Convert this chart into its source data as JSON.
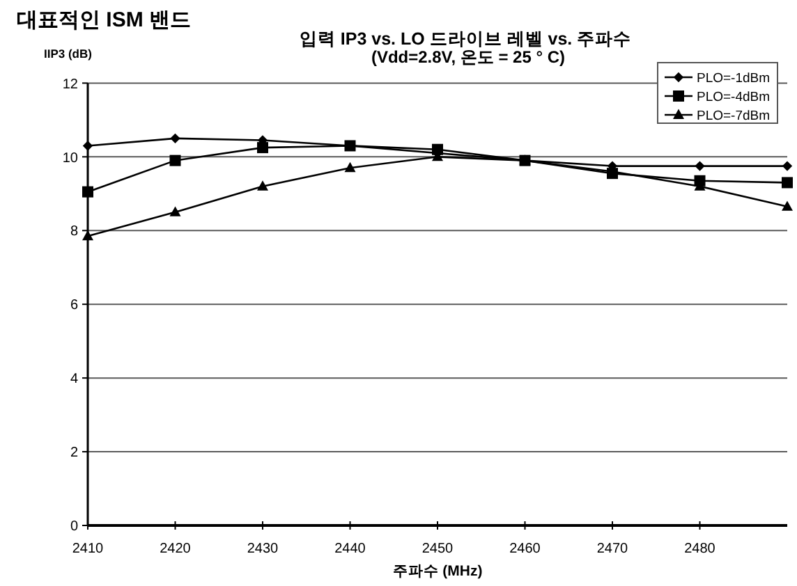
{
  "chart_data": {
    "type": "line",
    "title": "입력 IP3 vs. LO 드라이브 레벨 vs. 주파수",
    "subtitle": "(Vdd=2.8V, 온도 = 25 ° C)",
    "xlabel": "주파수 (MHz)",
    "ylabel": "IIP3 (dB)",
    "annotations": [
      "대표적인 ISM 밴드"
    ],
    "x": [
      2410,
      2420,
      2430,
      2440,
      2450,
      2460,
      2470,
      2480,
      2490
    ],
    "series": [
      {
        "name": "PLO=-1dBm",
        "color": "#000000",
        "marker": "diamond",
        "values": [
          10.3,
          10.5,
          10.45,
          10.3,
          10.1,
          9.9,
          9.75,
          9.75,
          9.75
        ]
      },
      {
        "name": "PLO=-4dBm",
        "color": "#000000",
        "marker": "square",
        "values": [
          9.05,
          9.9,
          10.25,
          10.3,
          10.2,
          9.9,
          9.55,
          9.35,
          9.3
        ]
      },
      {
        "name": "PLO=-7dBm",
        "color": "#000000",
        "marker": "triangle",
        "values": [
          7.85,
          8.5,
          9.2,
          9.7,
          10.0,
          9.9,
          9.6,
          9.2,
          8.65
        ]
      }
    ],
    "xlim": [
      2410,
      2490
    ],
    "xticks": [
      2410,
      2420,
      2430,
      2440,
      2450,
      2460,
      2470,
      2480
    ],
    "ylim": [
      0,
      12
    ],
    "yticks": [
      0,
      2,
      4,
      6,
      8,
      10,
      12
    ],
    "grid": "y",
    "legend": "top right"
  }
}
